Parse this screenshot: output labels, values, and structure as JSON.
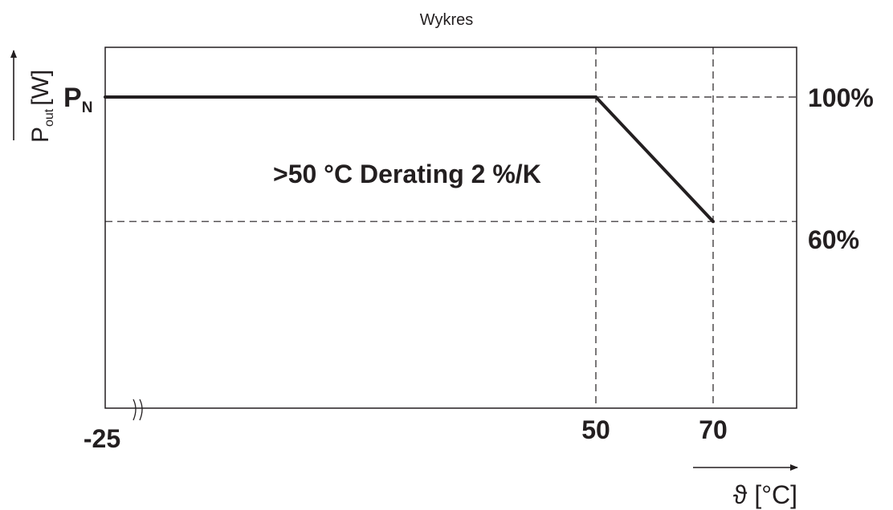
{
  "chart_data": {
    "type": "line",
    "title": "Wykres",
    "xlabel": "ϑ [°C]",
    "ylabel": {
      "main": "P",
      "subscript": "out",
      "unit": "[W]"
    },
    "y_reference": {
      "main": "P",
      "subscript": "N"
    },
    "x_ticks": [
      "-25",
      "50",
      "70"
    ],
    "y_ticks": [
      "100%",
      "60%"
    ],
    "xlim": [
      -25,
      80
    ],
    "ylim": [
      0,
      100
    ],
    "x_axis_break": true,
    "grid": "dashed reference lines at x=50, x=70, y=100, y=60",
    "annotation": ">50 °C Derating 2 %/K",
    "series": [
      {
        "values": [
          [
            -25,
            100
          ],
          [
            50,
            100
          ],
          [
            70,
            60
          ]
        ]
      }
    ],
    "colors": {
      "line": "#231f20",
      "frame": "#231f20"
    }
  }
}
